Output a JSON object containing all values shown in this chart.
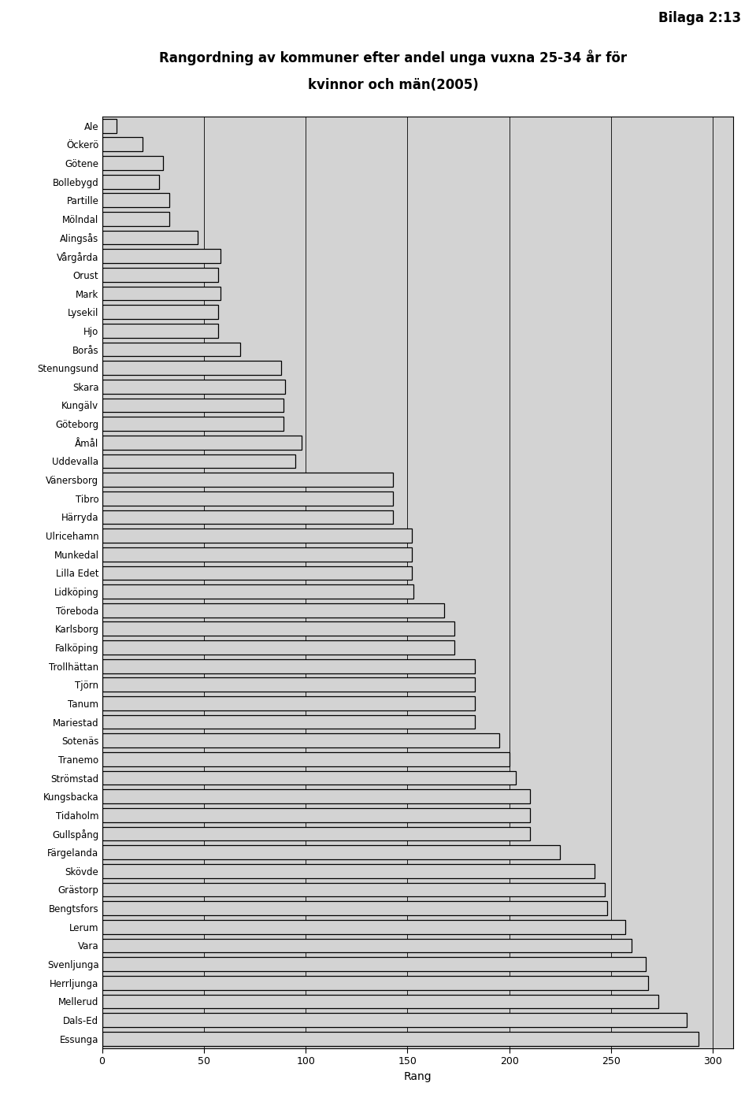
{
  "title_line1": "Rangordning av kommuner efter andel unga vuxna 25-34 år för",
  "title_line2": "kvinnor och män(2005)",
  "bilaga": "Bilaga 2:13",
  "xlabel": "Rang",
  "xlim": [
    0,
    310
  ],
  "xticks": [
    0,
    50,
    100,
    150,
    200,
    250,
    300
  ],
  "background_color": "#d3d3d3",
  "bar_color": "#d3d3d3",
  "bar_edgecolor": "#000000",
  "categories": [
    "Ale",
    "Öckerö",
    "Götene",
    "Bollebygd",
    "Partille",
    "Mölndal",
    "Alingsås",
    "Vårgårda",
    "Orust",
    "Mark",
    "Lysekil",
    "Hjo",
    "Borås",
    "Stenungsund",
    "Skara",
    "Kungälv",
    "Göteborg",
    "Åmål",
    "Uddevalla",
    "Vänersborg",
    "Tibro",
    "Härryda",
    "Ulricehamn",
    "Munkedal",
    "Lilla Edet",
    "Lidköping",
    "Töreboda",
    "Karlsborg",
    "Falköping",
    "Trollhättan",
    "Tjörn",
    "Tanum",
    "Mariestad",
    "Sotenäs",
    "Tranemo",
    "Strömstad",
    "Kungsbacka",
    "Tidaholm",
    "Gullspång",
    "Färgelanda",
    "Skövde",
    "Grästorp",
    "Bengtsfors",
    "Lerum",
    "Vara",
    "Svenljunga",
    "Herrljunga",
    "Mellerud",
    "Dals-Ed",
    "Essunga"
  ],
  "values": [
    7,
    20,
    30,
    28,
    33,
    33,
    47,
    58,
    57,
    58,
    57,
    57,
    68,
    88,
    90,
    89,
    89,
    98,
    95,
    143,
    143,
    143,
    152,
    152,
    152,
    153,
    168,
    173,
    173,
    183,
    183,
    183,
    183,
    195,
    200,
    203,
    210,
    210,
    210,
    225,
    242,
    247,
    248,
    257,
    260,
    267,
    268,
    273,
    287,
    293
  ]
}
